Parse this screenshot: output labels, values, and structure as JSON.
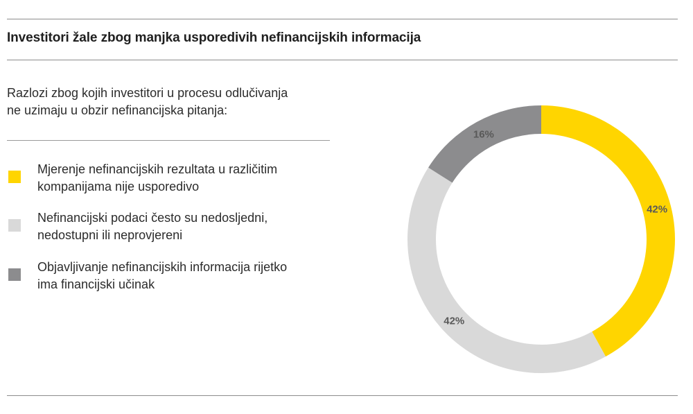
{
  "title": "Investitori žale zbog manjka usporedivih nefinancijskih informacija",
  "intro": {
    "line1": "Razlozi zbog kojih investitori u procesu odlučivanja",
    "line2": "ne uzimaju u obzir nefinancijska pitanja:"
  },
  "legend": [
    {
      "line1": "Mjerenje nefinancijskih rezultata u različitim",
      "line2": "kompanijama nije usporedivo",
      "color": "#FFD500"
    },
    {
      "line1": "Nefinancijski podaci često su nedosljedni,",
      "line2": "nedostupni ili neprovjereni",
      "color": "#D9D9D9"
    },
    {
      "line1": "Objavljivanje nefinancijskih informacija rijetko",
      "line2": "ima financijski učinak",
      "color": "#8C8C8E"
    }
  ],
  "chart_data": {
    "type": "pie",
    "subtype": "donut",
    "categories": [
      "Mjerenje nefinancijskih rezultata u različitim kompanijama nije usporedivo",
      "Nefinancijski podaci često su nedosljedni, nedostupni ili neprovjereni",
      "Objavljivanje nefinancijskih informacija rijetko ima financijski učinak"
    ],
    "values": [
      42,
      42,
      16
    ],
    "labels": [
      "42%",
      "42%",
      "16%"
    ],
    "colors": [
      "#FFD500",
      "#D9D9D9",
      "#8C8C8E"
    ],
    "start": "top (12 o'clock)",
    "direction": "clockwise"
  }
}
